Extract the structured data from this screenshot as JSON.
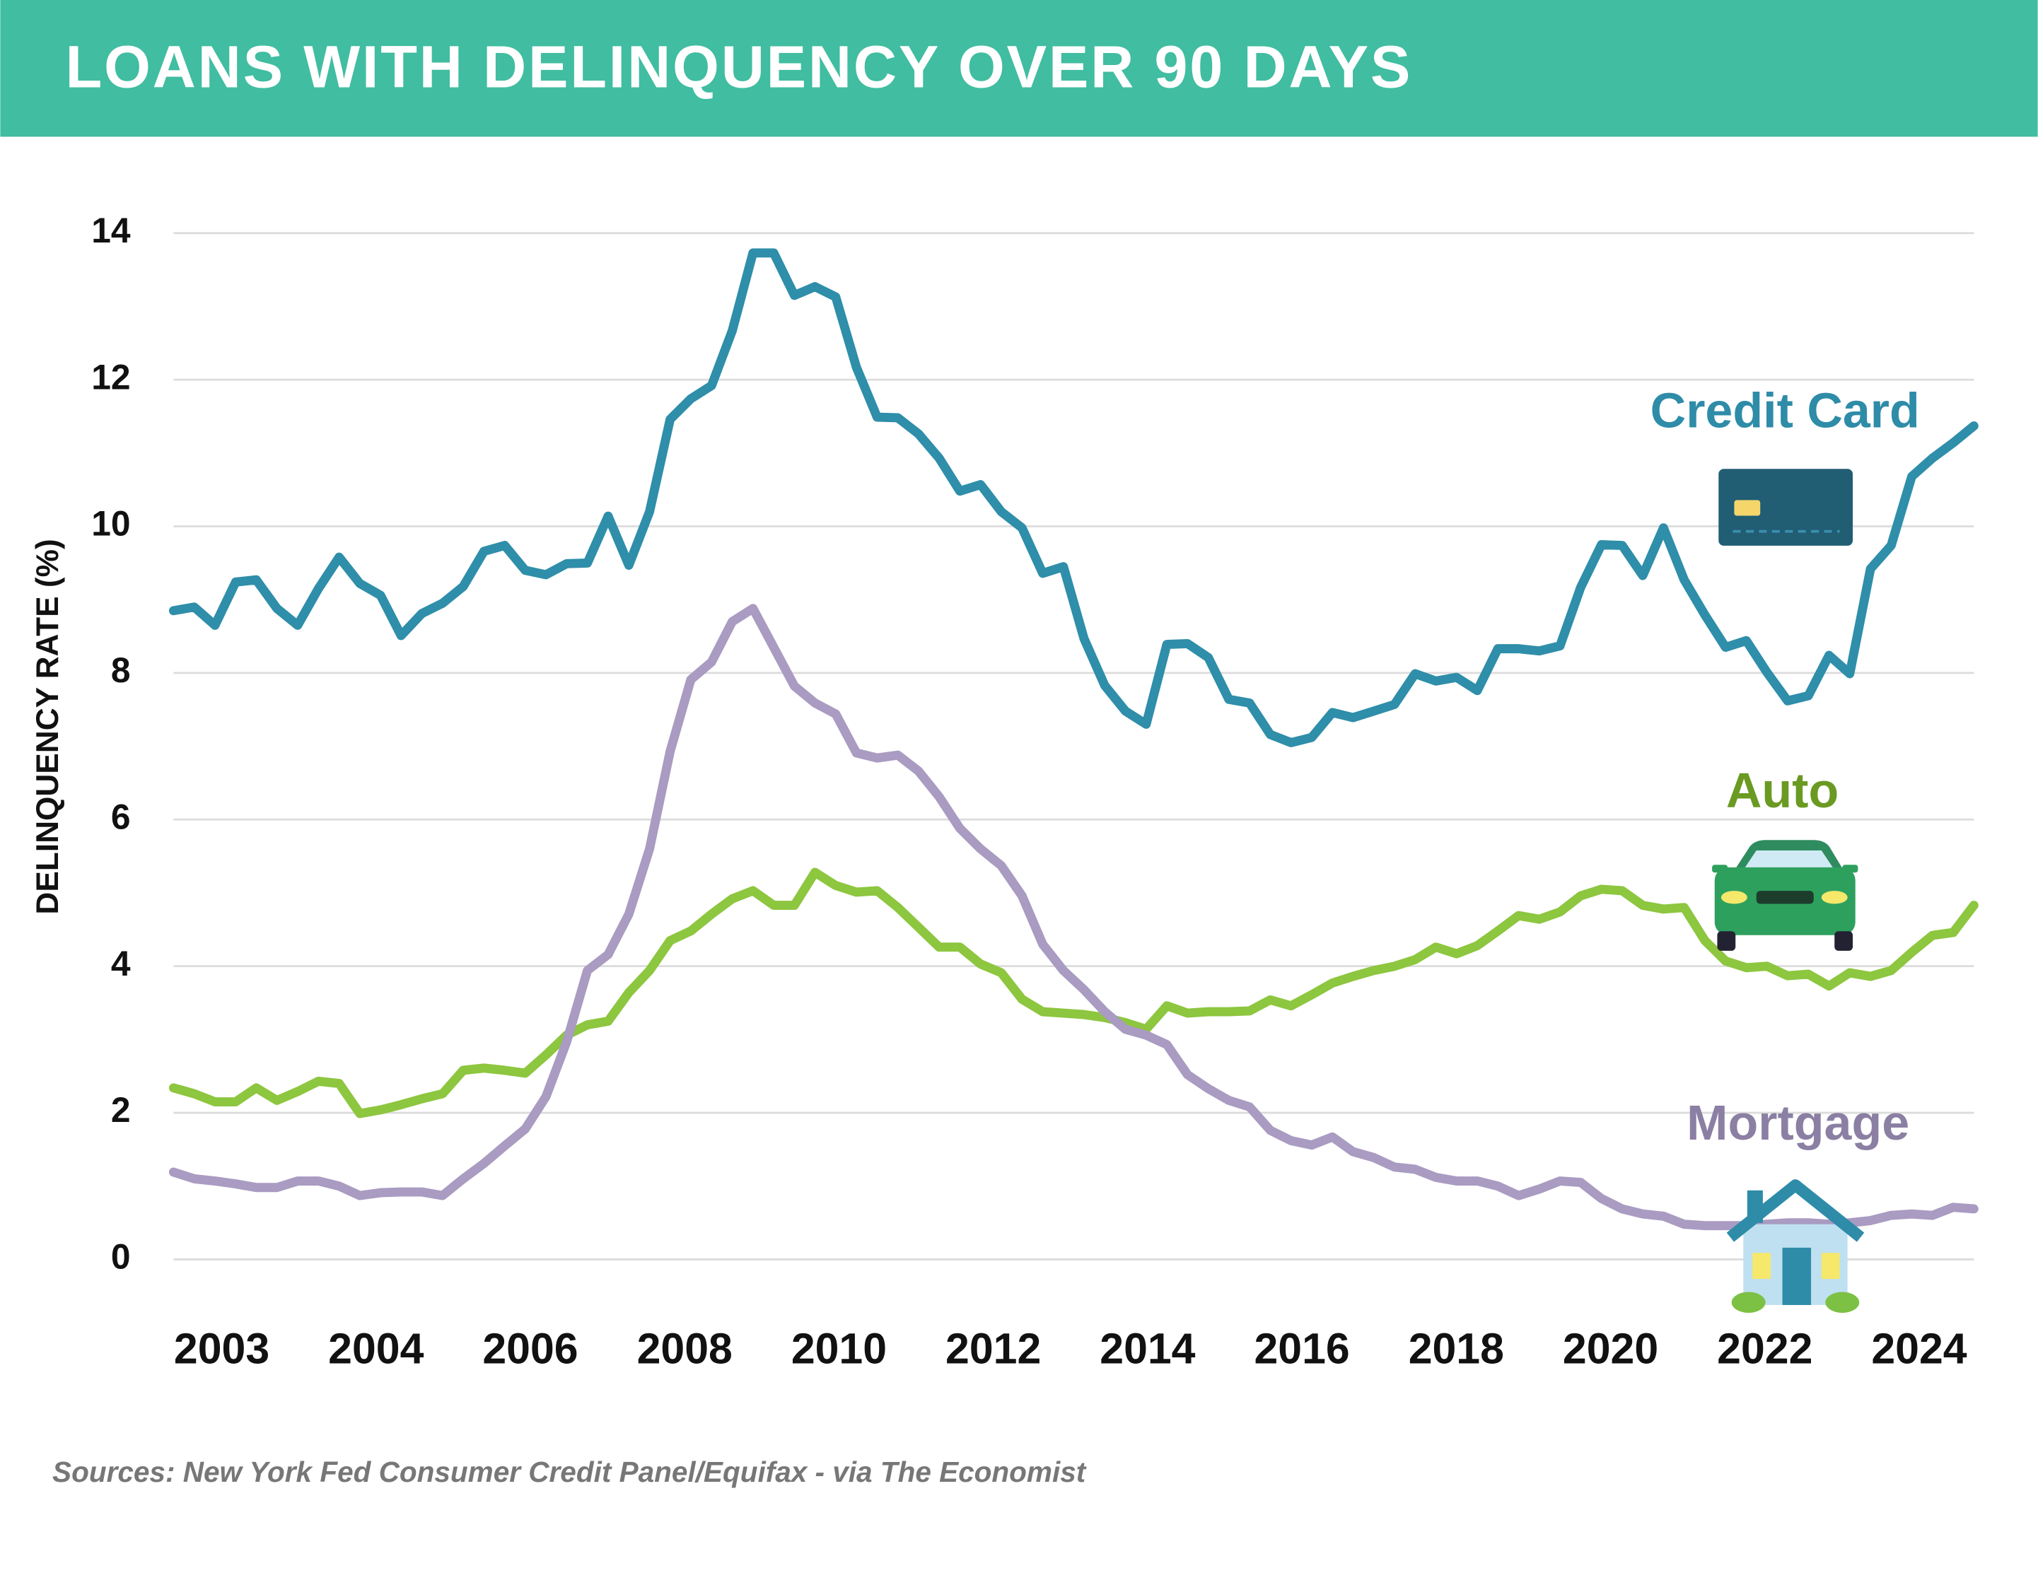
{
  "chart_data": {
    "type": "line",
    "title": "LOANS WITH DELINQUENCY OVER 90 DAYS",
    "y_label": "DELINQUENCY RATE (%)",
    "source": "Sources: New York Fed Consumer Credit Panel/Equifax - via The Economist",
    "xtick_labels": [
      "2003",
      "2004",
      "2006",
      "2008",
      "2010",
      "2012",
      "2014",
      "2016",
      "2018",
      "2020",
      "2022",
      "2024"
    ],
    "ylim": [
      0,
      14
    ],
    "yticks": [
      0,
      2,
      4,
      6,
      8,
      10,
      12,
      14
    ],
    "grid": true,
    "series": [
      {
        "name": "Credit Card",
        "color": "#2f8ea9",
        "label_color": "#2e8ca8",
        "values": [
          8.85,
          8.9,
          8.65,
          9.24,
          9.27,
          8.88,
          8.65,
          9.15,
          9.58,
          9.22,
          9.06,
          8.51,
          8.81,
          8.95,
          9.18,
          9.66,
          9.74,
          9.4,
          9.34,
          9.49,
          9.5,
          10.14,
          9.47,
          10.2,
          11.46,
          11.74,
          11.92,
          12.67,
          13.73,
          13.73,
          13.15,
          13.27,
          13.13,
          12.17,
          11.49,
          11.48,
          11.26,
          10.93,
          10.48,
          10.57,
          10.2,
          9.98,
          9.36,
          9.45,
          8.47,
          7.83,
          7.48,
          7.3,
          8.39,
          8.4,
          8.21,
          7.64,
          7.59,
          7.16,
          7.05,
          7.12,
          7.46,
          7.39,
          7.48,
          7.57,
          7.99,
          7.89,
          7.94,
          7.76,
          8.33,
          8.33,
          8.3,
          8.37,
          9.17,
          9.75,
          9.74,
          9.33,
          9.98,
          9.27,
          8.79,
          8.35,
          8.44,
          8.01,
          7.62,
          7.69,
          8.24,
          7.99,
          9.42,
          9.74,
          10.68,
          10.93,
          11.14,
          11.37
        ]
      },
      {
        "name": "Auto",
        "color": "#8dc63f",
        "label_color": "#6a9a22",
        "values": [
          2.34,
          2.26,
          2.15,
          2.15,
          2.34,
          2.17,
          2.29,
          2.43,
          2.4,
          1.99,
          2.04,
          2.11,
          2.19,
          2.26,
          2.58,
          2.61,
          2.58,
          2.54,
          2.79,
          3.06,
          3.2,
          3.25,
          3.64,
          3.94,
          4.35,
          4.48,
          4.71,
          4.92,
          5.03,
          4.83,
          4.83,
          5.28,
          5.1,
          5.01,
          5.03,
          4.8,
          4.53,
          4.26,
          4.26,
          4.03,
          3.91,
          3.55,
          3.38,
          3.36,
          3.34,
          3.3,
          3.23,
          3.14,
          3.46,
          3.36,
          3.38,
          3.38,
          3.39,
          3.54,
          3.46,
          3.61,
          3.77,
          3.86,
          3.94,
          4.0,
          4.09,
          4.26,
          4.17,
          4.28,
          4.48,
          4.69,
          4.64,
          4.74,
          4.96,
          5.05,
          5.03,
          4.83,
          4.78,
          4.8,
          4.35,
          4.07,
          3.98,
          4.0,
          3.87,
          3.89,
          3.73,
          3.91,
          3.86,
          3.94,
          4.19,
          4.42,
          4.46,
          4.83
        ]
      },
      {
        "name": "Mortgage",
        "color": "#a99bc1",
        "label_color": "#8b7fa3",
        "values": [
          1.19,
          1.1,
          1.07,
          1.03,
          0.98,
          0.98,
          1.07,
          1.07,
          1.0,
          0.87,
          0.91,
          0.92,
          0.92,
          0.87,
          1.1,
          1.31,
          1.55,
          1.78,
          2.22,
          2.97,
          3.94,
          4.16,
          4.71,
          5.6,
          6.93,
          7.91,
          8.15,
          8.7,
          8.88,
          8.35,
          7.82,
          7.59,
          7.44,
          6.91,
          6.84,
          6.88,
          6.66,
          6.31,
          5.88,
          5.6,
          5.37,
          4.96,
          4.3,
          3.94,
          3.68,
          3.38,
          3.14,
          3.06,
          2.93,
          2.52,
          2.33,
          2.17,
          2.08,
          1.76,
          1.62,
          1.56,
          1.67,
          1.47,
          1.39,
          1.26,
          1.23,
          1.12,
          1.07,
          1.07,
          1.0,
          0.87,
          0.96,
          1.07,
          1.05,
          0.83,
          0.69,
          0.62,
          0.59,
          0.48,
          0.46,
          0.46,
          0.46,
          0.48,
          0.5,
          0.5,
          0.48,
          0.5,
          0.53,
          0.6,
          0.62,
          0.6,
          0.71,
          0.69
        ]
      }
    ]
  }
}
